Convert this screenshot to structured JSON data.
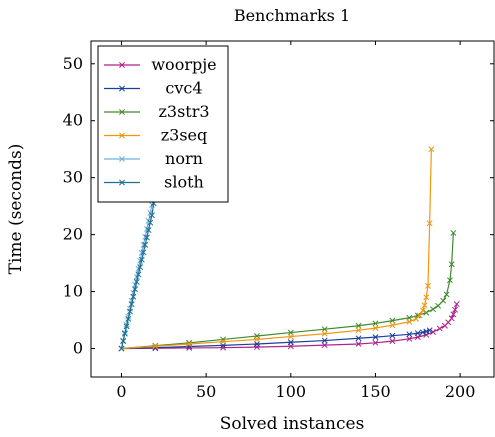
{
  "chart_data": {
    "type": "line",
    "title": "Benchmarks 1",
    "xlabel": "Solved instances",
    "ylabel": "Time (seconds)",
    "xlim": [
      -18,
      220
    ],
    "ylim": [
      -5,
      54
    ],
    "xticks": [
      0,
      50,
      100,
      150,
      200
    ],
    "yticks": [
      0,
      10,
      20,
      30,
      40,
      50
    ],
    "grid": false,
    "legend_position": "top-left",
    "marker": "x",
    "series": [
      {
        "name": "woorpje",
        "color": "#b0228a",
        "x": [
          0,
          20,
          40,
          60,
          80,
          100,
          120,
          140,
          150,
          160,
          170,
          175,
          180,
          184,
          188,
          191,
          193,
          195,
          196,
          197,
          198
        ],
        "y": [
          0,
          0.05,
          0.1,
          0.15,
          0.25,
          0.4,
          0.6,
          0.8,
          1.0,
          1.3,
          1.7,
          2.0,
          2.4,
          2.9,
          3.5,
          4.0,
          4.6,
          5.3,
          6.0,
          6.8,
          7.8
        ]
      },
      {
        "name": "cvc4",
        "color": "#1a3f9c",
        "x": [
          0,
          20,
          40,
          60,
          80,
          100,
          120,
          140,
          150,
          160,
          170,
          175,
          178,
          180,
          182
        ],
        "y": [
          0,
          0.15,
          0.35,
          0.55,
          0.8,
          1.1,
          1.4,
          1.8,
          2.0,
          2.25,
          2.5,
          2.7,
          2.85,
          3.0,
          3.2
        ]
      },
      {
        "name": "z3str3",
        "color": "#3f8a2e",
        "x": [
          0,
          20,
          40,
          60,
          80,
          100,
          120,
          140,
          150,
          160,
          170,
          175,
          180,
          184,
          187,
          190,
          192,
          194,
          195,
          196
        ],
        "y": [
          0,
          0.5,
          1.0,
          1.6,
          2.2,
          2.8,
          3.4,
          4.0,
          4.4,
          4.9,
          5.4,
          5.8,
          6.3,
          6.9,
          7.5,
          8.4,
          9.5,
          12.0,
          14.8,
          20.3
        ]
      },
      {
        "name": "z3seq",
        "color": "#f0960f",
        "x": [
          0,
          20,
          40,
          60,
          80,
          100,
          120,
          140,
          150,
          160,
          170,
          174,
          176,
          178,
          179,
          180,
          181,
          182,
          183
        ],
        "y": [
          0,
          0.4,
          0.8,
          1.2,
          1.6,
          2.1,
          2.6,
          3.2,
          3.6,
          4.1,
          4.7,
          5.2,
          5.8,
          6.7,
          7.6,
          9.0,
          11.0,
          22.0,
          35.0
        ]
      },
      {
        "name": "norn",
        "color": "#6fb0e0",
        "x": [
          0,
          1,
          2,
          3,
          4,
          5,
          6,
          7,
          8,
          9,
          10,
          11,
          12,
          13,
          14,
          15,
          16,
          17,
          18,
          19,
          20
        ],
        "y": [
          0,
          1.4,
          2.8,
          4.2,
          5.6,
          7.0,
          8.4,
          9.8,
          11.2,
          12.6,
          14.0,
          15.4,
          16.8,
          18.2,
          19.6,
          21.0,
          22.4,
          23.8,
          25.2,
          26.6,
          28.0
        ]
      },
      {
        "name": "sloth",
        "color": "#1f6f8f",
        "x": [
          0,
          1,
          2,
          3,
          4,
          5,
          6,
          7,
          8,
          9,
          10,
          11,
          12,
          13,
          14,
          15,
          16,
          17,
          18,
          19
        ],
        "y": [
          0,
          1.3,
          2.6,
          3.9,
          5.2,
          6.5,
          7.8,
          9.1,
          10.4,
          11.7,
          13.0,
          14.3,
          15.6,
          16.9,
          18.2,
          19.5,
          20.8,
          22.1,
          23.4,
          25.5
        ]
      }
    ]
  }
}
